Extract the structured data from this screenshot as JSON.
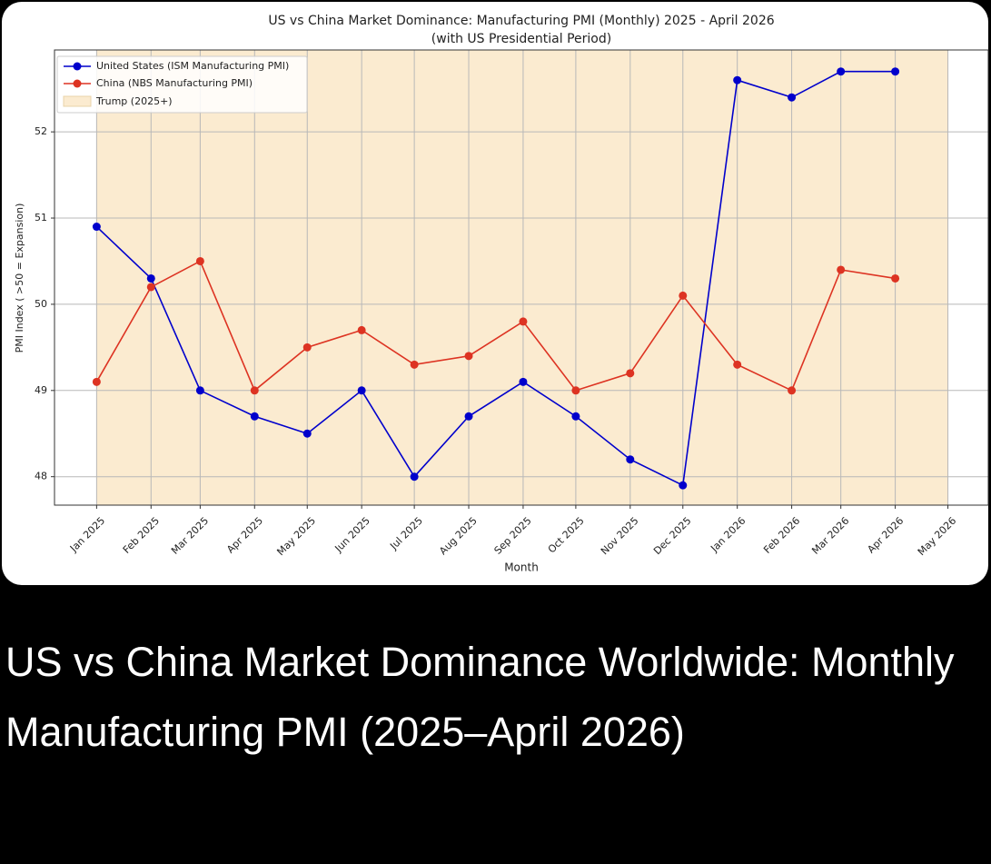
{
  "caption": "US vs China Market Dominance Worldwide: Monthly Manufacturing PMI (2025–April 2026)",
  "chart_data": {
    "type": "line",
    "title": "US vs China Market Dominance: Manufacturing PMI (Monthly) 2025 - April 2026",
    "subtitle": "(with US Presidential Period)",
    "xlabel": "Month",
    "ylabel": "PMI Index ( >50 = Expansion)",
    "x": [
      "2025-01",
      "2025-02",
      "2025-03",
      "2025-04",
      "2025-05",
      "2025-06",
      "2025-07",
      "2025-08",
      "2025-09",
      "2025-10",
      "2025-11",
      "2025-12",
      "2026-01",
      "2026-02",
      "2026-03",
      "2026-04"
    ],
    "series": [
      {
        "name": "United States (ISM Manufacturing PMI)",
        "color": "#0000cc",
        "values": [
          50.9,
          50.3,
          49.0,
          48.7,
          48.5,
          49.0,
          48.0,
          48.7,
          49.1,
          48.7,
          48.2,
          47.9,
          52.6,
          52.4,
          52.7,
          52.7
        ]
      },
      {
        "name": "China (NBS Manufacturing PMI)",
        "color": "#dd3322",
        "values": [
          49.1,
          50.2,
          50.5,
          49.0,
          49.5,
          49.7,
          49.3,
          49.4,
          49.8,
          49.0,
          49.2,
          50.1,
          49.3,
          49.0,
          50.4,
          50.3
        ]
      }
    ],
    "span": {
      "name": "Trump (2025+)",
      "range": [
        "2025-01",
        "2026-05"
      ],
      "color": "#fbebd0"
    },
    "xlim": [
      "2024-12-08",
      "2026-05-24"
    ],
    "xticks": [
      {
        "value": "2025-01",
        "label": "Jan 2025"
      },
      {
        "value": "2025-02",
        "label": "Feb 2025"
      },
      {
        "value": "2025-03",
        "label": "Mar 2025"
      },
      {
        "value": "2025-04",
        "label": "Apr 2025"
      },
      {
        "value": "2025-05",
        "label": "May 2025"
      },
      {
        "value": "2025-06",
        "label": "Jun 2025"
      },
      {
        "value": "2025-07",
        "label": "Jul 2025"
      },
      {
        "value": "2025-08",
        "label": "Aug 2025"
      },
      {
        "value": "2025-09",
        "label": "Sep 2025"
      },
      {
        "value": "2025-10",
        "label": "Oct 2025"
      },
      {
        "value": "2025-11",
        "label": "Nov 2025"
      },
      {
        "value": "2025-12",
        "label": "Dec 2025"
      },
      {
        "value": "2026-01",
        "label": "Jan 2026"
      },
      {
        "value": "2026-02",
        "label": "Feb 2026"
      },
      {
        "value": "2026-03",
        "label": "Mar 2026"
      },
      {
        "value": "2026-04",
        "label": "Apr 2026"
      },
      {
        "value": "2026-05",
        "label": "May 2026"
      }
    ],
    "ylim": [
      47.67,
      52.95
    ],
    "yticks": [
      48,
      49,
      50,
      51,
      52
    ],
    "grid": true,
    "legend": "upper left"
  }
}
